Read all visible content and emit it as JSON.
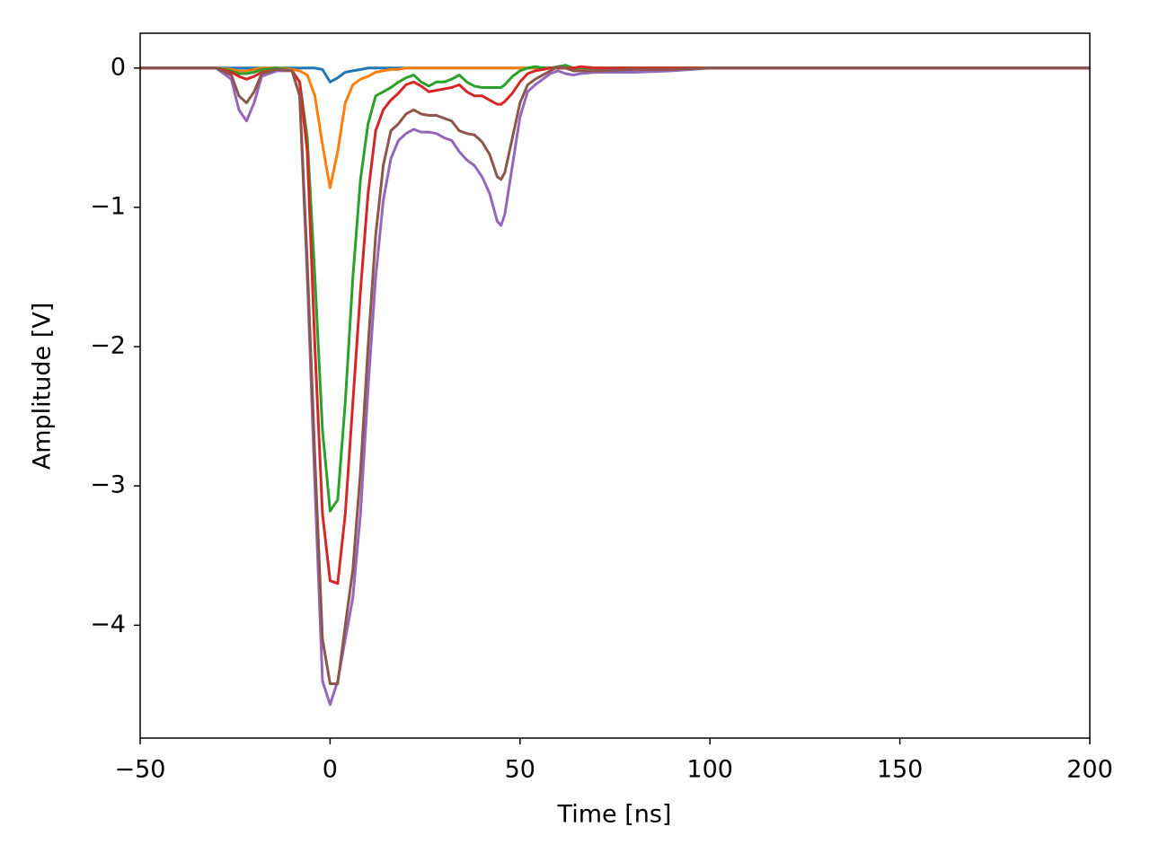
{
  "chart_data": {
    "type": "line",
    "x_label": "Time [ns]",
    "y_label": "Amplitude [V]",
    "x": [
      -50,
      -30,
      -26,
      -24,
      -22,
      -20,
      -18,
      -14,
      -10,
      -8,
      -6,
      -4,
      -2,
      0,
      2,
      4,
      6,
      8,
      10,
      12,
      14,
      16,
      18,
      20,
      22,
      24,
      26,
      28,
      30,
      32,
      34,
      36,
      38,
      40,
      42,
      44,
      45,
      46,
      48,
      50,
      52,
      54,
      56,
      58,
      60,
      62,
      64,
      66,
      70,
      80,
      90,
      100,
      150,
      200
    ],
    "series": [
      {
        "color": "#1f77b4",
        "values": [
          0,
          0,
          0,
          0,
          0,
          0,
          0,
          0,
          0,
          0,
          0,
          0,
          -0.01,
          -0.1,
          -0.07,
          -0.03,
          -0.02,
          -0.01,
          0,
          0,
          0,
          0,
          0,
          0,
          0,
          0,
          0,
          0,
          0,
          0,
          0,
          0,
          0,
          0,
          0,
          0,
          0,
          0,
          0,
          0,
          0,
          0,
          0,
          0,
          0,
          0,
          0,
          0,
          0,
          0,
          0,
          0,
          0,
          0
        ]
      },
      {
        "color": "#ff7f0e",
        "values": [
          0,
          0,
          -0.01,
          -0.02,
          -0.02,
          -0.01,
          0,
          0,
          -0.01,
          -0.02,
          -0.05,
          -0.2,
          -0.55,
          -0.86,
          -0.6,
          -0.25,
          -0.12,
          -0.08,
          -0.06,
          -0.03,
          -0.02,
          -0.01,
          -0.01,
          0,
          0,
          0,
          0,
          0,
          0,
          0,
          0,
          0,
          0,
          0,
          0,
          0,
          0,
          0,
          0,
          0,
          0,
          0,
          0,
          0,
          0,
          0,
          0,
          0,
          0,
          0,
          0,
          0,
          0,
          0
        ]
      },
      {
        "color": "#2ca02c",
        "values": [
          0,
          0,
          -0.02,
          -0.04,
          -0.04,
          -0.03,
          -0.01,
          0,
          -0.02,
          -0.1,
          -0.5,
          -1.5,
          -2.6,
          -3.18,
          -3.1,
          -2.4,
          -1.5,
          -0.8,
          -0.4,
          -0.2,
          -0.17,
          -0.14,
          -0.1,
          -0.07,
          -0.05,
          -0.1,
          -0.13,
          -0.1,
          -0.1,
          -0.08,
          -0.05,
          -0.1,
          -0.13,
          -0.14,
          -0.14,
          -0.14,
          -0.14,
          -0.12,
          -0.06,
          -0.02,
          0,
          0.01,
          0,
          0,
          0.01,
          0.02,
          0,
          0,
          0,
          0,
          0,
          0,
          0,
          0
        ]
      },
      {
        "color": "#d62728",
        "values": [
          0,
          0,
          -0.03,
          -0.06,
          -0.08,
          -0.06,
          -0.03,
          -0.01,
          -0.02,
          -0.1,
          -0.6,
          -2.0,
          -3.2,
          -3.68,
          -3.7,
          -3.2,
          -2.4,
          -1.6,
          -0.9,
          -0.45,
          -0.3,
          -0.23,
          -0.18,
          -0.12,
          -0.1,
          -0.13,
          -0.17,
          -0.16,
          -0.15,
          -0.14,
          -0.12,
          -0.17,
          -0.2,
          -0.2,
          -0.23,
          -0.26,
          -0.26,
          -0.24,
          -0.18,
          -0.1,
          -0.04,
          -0.02,
          -0.01,
          0,
          0,
          0,
          0,
          0.01,
          0,
          0,
          0,
          0,
          0,
          0
        ]
      },
      {
        "color": "#9467bd",
        "values": [
          0,
          0,
          -0.08,
          -0.3,
          -0.38,
          -0.25,
          -0.06,
          -0.02,
          -0.02,
          -0.2,
          -1.5,
          -3.0,
          -4.4,
          -4.57,
          -4.4,
          -4.1,
          -3.8,
          -3.2,
          -2.3,
          -1.5,
          -0.95,
          -0.65,
          -0.52,
          -0.47,
          -0.44,
          -0.46,
          -0.46,
          -0.47,
          -0.5,
          -0.52,
          -0.6,
          -0.66,
          -0.7,
          -0.78,
          -0.9,
          -1.1,
          -1.13,
          -1.05,
          -0.7,
          -0.35,
          -0.17,
          -0.12,
          -0.08,
          -0.04,
          -0.02,
          -0.04,
          -0.05,
          -0.04,
          -0.03,
          -0.03,
          -0.02,
          0,
          0,
          0
        ]
      },
      {
        "color": "#8c564b",
        "values": [
          0,
          0,
          -0.05,
          -0.2,
          -0.25,
          -0.17,
          -0.04,
          -0.01,
          -0.02,
          -0.2,
          -1.4,
          -2.8,
          -4.1,
          -4.42,
          -4.42,
          -4.0,
          -3.6,
          -2.9,
          -2.0,
          -1.2,
          -0.7,
          -0.45,
          -0.4,
          -0.33,
          -0.3,
          -0.33,
          -0.34,
          -0.34,
          -0.36,
          -0.38,
          -0.45,
          -0.47,
          -0.48,
          -0.53,
          -0.62,
          -0.78,
          -0.8,
          -0.75,
          -0.5,
          -0.25,
          -0.12,
          -0.08,
          -0.05,
          -0.02,
          0.01,
          0,
          -0.02,
          -0.02,
          -0.02,
          -0.01,
          -0.01,
          0,
          0,
          0
        ]
      }
    ],
    "xlim": [
      -50,
      200
    ],
    "xticks": [
      {
        "value": -50,
        "label": "−50"
      },
      0,
      50,
      100,
      150,
      200
    ],
    "ylim": [
      -4.81,
      0.25
    ],
    "yticks": [
      {
        "value": -4,
        "label": "−4"
      },
      {
        "value": -3,
        "label": "−3"
      },
      {
        "value": -2,
        "label": "−2"
      },
      {
        "value": -1,
        "label": "−1"
      },
      0
    ],
    "grid": false
  }
}
